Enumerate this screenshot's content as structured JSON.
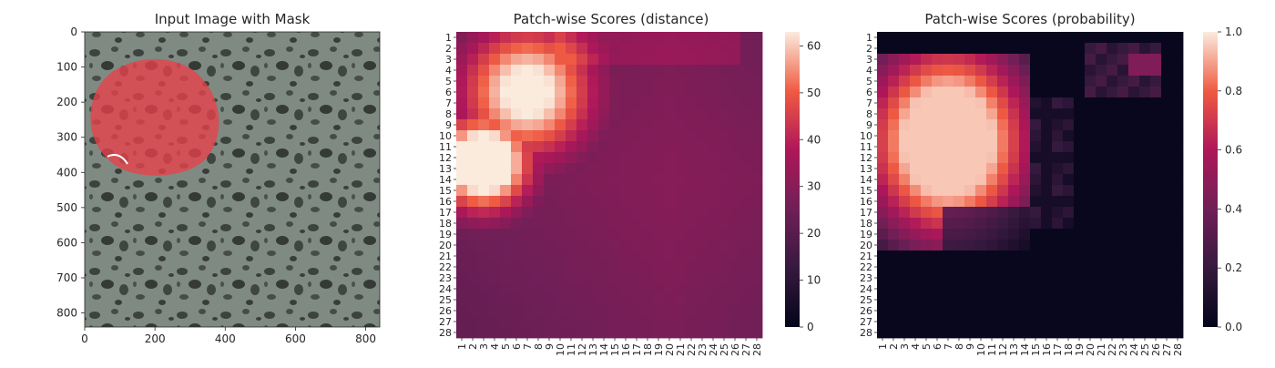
{
  "chart_data": [
    {
      "type": "image",
      "title": "Input Image with Mask",
      "xlim": [
        0,
        840
      ],
      "ylim": [
        840,
        0
      ],
      "xticks": [
        "0",
        "200",
        "400",
        "600",
        "800"
      ],
      "yticks": [
        "0",
        "100",
        "200",
        "300",
        "400",
        "500",
        "600",
        "700",
        "800"
      ],
      "image_description": "grey granular stone texture",
      "mask_color": "#e8414a",
      "mask_center": [
        145,
        245
      ],
      "mask_radius": 165
    },
    {
      "type": "heatmap",
      "title": "Patch-wise Scores (distance)",
      "rows": [
        "1",
        "2",
        "3",
        "4",
        "5",
        "6",
        "7",
        "8",
        "9",
        "10",
        "11",
        "12",
        "13",
        "14",
        "15",
        "16",
        "17",
        "18",
        "19",
        "20",
        "21",
        "22",
        "23",
        "24",
        "25",
        "26",
        "27",
        "28"
      ],
      "cols": [
        "1",
        "2",
        "3",
        "4",
        "5",
        "6",
        "7",
        "8",
        "9",
        "10",
        "11",
        "12",
        "13",
        "14",
        "15",
        "16",
        "17",
        "18",
        "19",
        "20",
        "21",
        "22",
        "23",
        "24",
        "25",
        "26",
        "27",
        "28"
      ],
      "colorbar_ticks": [
        "0",
        "10",
        "20",
        "30",
        "40",
        "50",
        "60"
      ],
      "vmin": 0,
      "vmax": 63,
      "colormap": "rocket",
      "blobs": [
        {
          "row": 12.5,
          "col": 3,
          "peak": 62,
          "spread": 3.2
        },
        {
          "row": 6,
          "col": 7,
          "peak": 50,
          "spread": 4.5
        }
      ],
      "baseline": 30
    },
    {
      "type": "heatmap",
      "title": "Patch-wise Scores (probability)",
      "rows": [
        "1",
        "2",
        "3",
        "4",
        "5",
        "6",
        "7",
        "8",
        "9",
        "10",
        "11",
        "12",
        "13",
        "14",
        "15",
        "16",
        "17",
        "18",
        "19",
        "20",
        "21",
        "22",
        "23",
        "24",
        "25",
        "26",
        "27",
        "28"
      ],
      "cols": [
        "1",
        "2",
        "3",
        "4",
        "5",
        "6",
        "7",
        "8",
        "9",
        "10",
        "11",
        "12",
        "13",
        "14",
        "15",
        "16",
        "17",
        "18",
        "19",
        "20",
        "21",
        "22",
        "23",
        "24",
        "25",
        "26",
        "27",
        "28"
      ],
      "colorbar_ticks": [
        "0.0",
        "0.2",
        "0.4",
        "0.6",
        "0.8",
        "1.0"
      ],
      "vmin": 0,
      "vmax": 1,
      "colormap": "rocket",
      "region": {
        "row_start": 3,
        "row_end": 20,
        "col_start": 1,
        "col_end": 14
      },
      "baseline": 0.02
    }
  ]
}
